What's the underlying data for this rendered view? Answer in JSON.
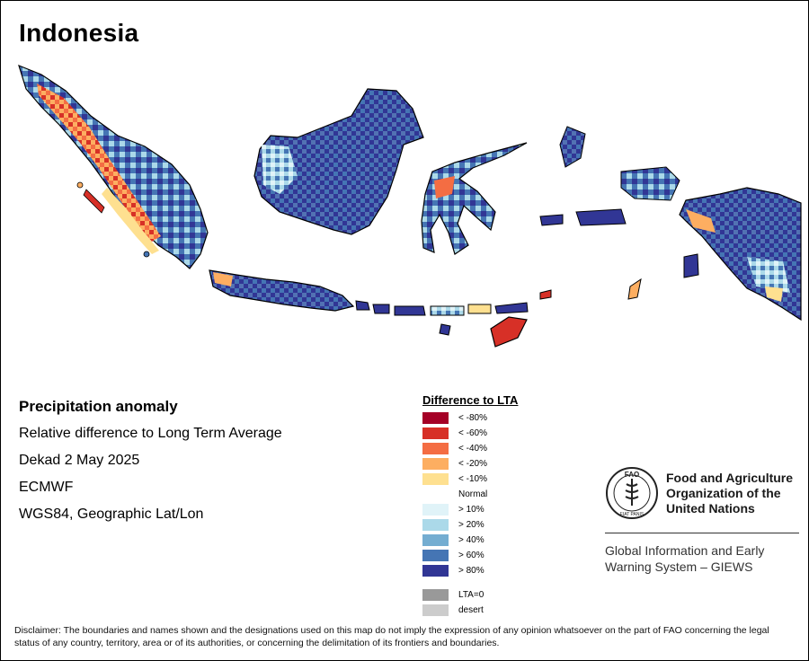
{
  "map_title": "Indonesia",
  "info": {
    "heading": "Precipitation anomaly",
    "lines": [
      "Relative difference to Long Term Average",
      "Dekad 2 May 2025",
      "ECMWF",
      "WGS84, Geographic Lat/Lon"
    ]
  },
  "legend": {
    "title": "Difference to LTA",
    "dry": [
      {
        "label": "< -80%",
        "color": "#a50026"
      },
      {
        "label": "< -60%",
        "color": "#d73027"
      },
      {
        "label": "< -40%",
        "color": "#f46d43"
      },
      {
        "label": "< -20%",
        "color": "#fdae61"
      },
      {
        "label": "< -10%",
        "color": "#fee090"
      }
    ],
    "normal_label": "Normal",
    "wet": [
      {
        "label": "> 10%",
        "color": "#e0f3f8"
      },
      {
        "label": "> 20%",
        "color": "#abd9e9"
      },
      {
        "label": "> 40%",
        "color": "#74add1"
      },
      {
        "label": "> 60%",
        "color": "#4575b4"
      },
      {
        "label": "> 80%",
        "color": "#313695"
      }
    ],
    "other": [
      {
        "label": "LTA=0",
        "color": "#999999"
      },
      {
        "label": "desert",
        "color": "#cccccc"
      }
    ]
  },
  "fao": {
    "name_lines": [
      "Food and Agriculture",
      "Organization of the",
      "United Nations"
    ],
    "giews_lines": [
      "Global Information and Early",
      "Warning System – GIEWS"
    ],
    "logo_text": "FAO",
    "motto": "FIAT PANIS"
  },
  "disclaimer": "Disclaimer: The boundaries and names shown and the designations used on this map do not imply the expression of any opinion whatsoever on the part of FAO concerning the legal status of any country, territory, area or of its authorities, or concerning the delimitation of its frontiers and boundaries."
}
